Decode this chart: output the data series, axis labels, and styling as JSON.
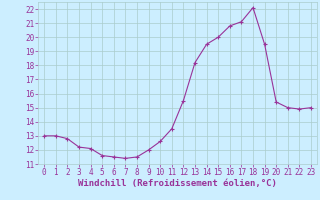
{
  "x": [
    0,
    1,
    2,
    3,
    4,
    5,
    6,
    7,
    8,
    9,
    10,
    11,
    12,
    13,
    14,
    15,
    16,
    17,
    18,
    19,
    20,
    21,
    22,
    23
  ],
  "y": [
    13,
    13,
    12.8,
    12.2,
    12.1,
    11.6,
    11.5,
    11.4,
    11.5,
    12.0,
    12.6,
    13.5,
    15.5,
    18.2,
    19.5,
    20.0,
    20.8,
    21.1,
    22.1,
    19.5,
    15.4,
    15.0,
    14.9,
    15.0
  ],
  "line_color": "#993399",
  "marker": "+",
  "marker_size": 3,
  "bg_color": "#cceeff",
  "grid_color": "#aacccc",
  "xlabel": "Windchill (Refroidissement éolien,°C)",
  "xlabel_color": "#993399",
  "ylim": [
    11,
    22.5
  ],
  "xlim": [
    -0.5,
    23.5
  ],
  "yticks": [
    11,
    12,
    13,
    14,
    15,
    16,
    17,
    18,
    19,
    20,
    21,
    22
  ],
  "xticks": [
    0,
    1,
    2,
    3,
    4,
    5,
    6,
    7,
    8,
    9,
    10,
    11,
    12,
    13,
    14,
    15,
    16,
    17,
    18,
    19,
    20,
    21,
    22,
    23
  ],
  "tick_color": "#993399",
  "tick_fontsize": 5.5,
  "xlabel_fontsize": 6.5,
  "linewidth": 0.8,
  "markeredgewidth": 0.8
}
